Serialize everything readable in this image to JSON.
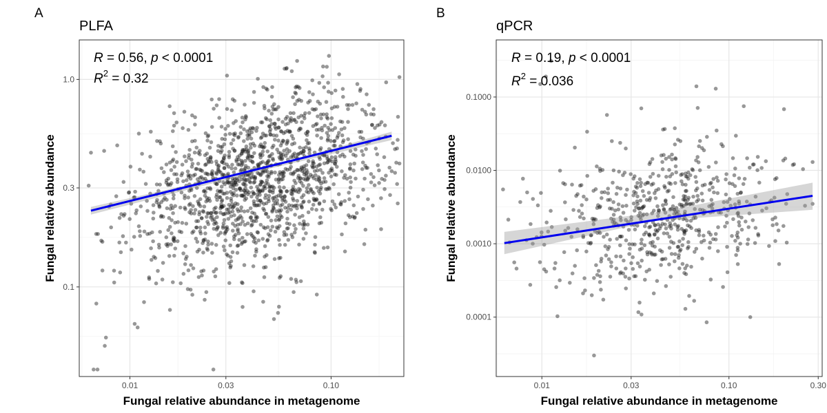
{
  "chart_data": [
    {
      "type": "scatter",
      "panel_letter": "A",
      "title": "PLFA",
      "xlabel": "Fungal relative abundance in metagenome",
      "ylabel": "Fungal relative abundance",
      "x_scale": "log10",
      "y_scale": "log10",
      "xlim": [
        0.0056,
        0.23
      ],
      "ylim": [
        0.037,
        1.55
      ],
      "x_ticks": [
        0.01,
        0.03,
        0.1
      ],
      "x_tick_labels": [
        "0.01",
        "0.03",
        "0.10"
      ],
      "y_ticks": [
        0.1,
        0.3,
        1.0
      ],
      "y_tick_labels": [
        "0.1",
        "0.3",
        "1.0"
      ],
      "grid": true,
      "annotation": {
        "r_label": "R",
        "r_text": " = 0.56, ",
        "p_label": "p",
        "p_text": " < 0.0001",
        "r2_label": "R",
        "r2_sup": "2",
        "r2_text": " = 0.32"
      },
      "regression": {
        "x": [
          0.0064,
          0.2
        ],
        "y": [
          0.233,
          0.535
        ]
      },
      "confidence_band": {
        "x": [
          0.0064,
          0.05,
          0.2
        ],
        "lower": [
          0.223,
          0.372,
          0.51
        ],
        "upper": [
          0.243,
          0.382,
          0.56
        ]
      },
      "points": {
        "n": 1450,
        "x_center": 0.045,
        "x_spread": 0.75,
        "y_center": 0.33,
        "y_spread": 0.52,
        "slope": 0.24,
        "color": "#1a1a1a",
        "opacity": 0.45
      },
      "outliers": [
        {
          "x": 0.0066,
          "y": 0.04
        },
        {
          "x": 0.0069,
          "y": 0.04
        },
        {
          "x": 0.0075,
          "y": 0.052
        },
        {
          "x": 0.0076,
          "y": 0.057
        },
        {
          "x": 0.0073,
          "y": 0.165
        },
        {
          "x": 0.0073,
          "y": 0.12
        },
        {
          "x": 0.0068,
          "y": 0.18
        },
        {
          "x": 0.0135,
          "y": 0.104
        },
        {
          "x": 0.0128,
          "y": 0.135
        },
        {
          "x": 0.0118,
          "y": 0.185
        },
        {
          "x": 0.026,
          "y": 0.04
        },
        {
          "x": 0.027,
          "y": 0.75
        },
        {
          "x": 0.0127,
          "y": 0.56
        },
        {
          "x": 0.0245,
          "y": 0.16
        },
        {
          "x": 0.052,
          "y": 0.07
        },
        {
          "x": 0.158,
          "y": 0.68
        },
        {
          "x": 0.17,
          "y": 0.6
        }
      ],
      "line_color": "#0000ee"
    },
    {
      "type": "scatter",
      "panel_letter": "B",
      "title": "qPCR",
      "xlabel": "Fungal relative abundance in metagenome",
      "ylabel": "Fungal relative abundance",
      "x_scale": "log10",
      "y_scale": "log10",
      "xlim": [
        0.0057,
        0.315
      ],
      "ylim": [
        1.55e-05,
        0.6
      ],
      "x_ticks": [
        0.01,
        0.03,
        0.1,
        0.3
      ],
      "x_tick_labels": [
        "0.01",
        "0.03",
        "0.10",
        "0.30"
      ],
      "y_ticks": [
        0.0001,
        0.001,
        0.01,
        0.1
      ],
      "y_tick_labels": [
        "0.0001",
        "0.0010",
        "0.0100",
        "0.1000"
      ],
      "grid": true,
      "annotation": {
        "r_label": "R",
        "r_text": " = 0.19, ",
        "p_label": "p",
        "p_text": " < 0.0001",
        "r2_label": "R",
        "r2_sup": "2",
        "r2_text": " = 0.036"
      },
      "regression": {
        "x": [
          0.0063,
          0.28
        ],
        "y": [
          0.00102,
          0.0045
        ]
      },
      "confidence_band": {
        "x": [
          0.0063,
          0.04,
          0.28
        ],
        "lower": [
          0.00072,
          0.00205,
          0.0029
        ],
        "upper": [
          0.00145,
          0.00265,
          0.0068
        ]
      },
      "points": {
        "n": 620,
        "x_center": 0.045,
        "x_spread": 0.75,
        "y_center": 0.0025,
        "y_spread": 1.25,
        "slope": 0.38,
        "color": "#1a1a1a",
        "opacity": 0.45
      },
      "outliers": [
        {
          "x": 0.0098,
          "y": 0.15
        },
        {
          "x": 0.0112,
          "y": 0.31
        },
        {
          "x": 0.0105,
          "y": 0.19
        },
        {
          "x": 0.067,
          "y": 0.14
        },
        {
          "x": 0.085,
          "y": 0.13
        },
        {
          "x": 0.12,
          "y": 0.075
        },
        {
          "x": 0.019,
          "y": 3e-05
        },
        {
          "x": 0.0062,
          "y": 0.0055
        },
        {
          "x": 0.28,
          "y": 0.013
        },
        {
          "x": 0.28,
          "y": 0.0035
        },
        {
          "x": 0.13,
          "y": 0.0001
        },
        {
          "x": 0.076,
          "y": 8.5e-05
        },
        {
          "x": 0.034,
          "y": 0.07
        },
        {
          "x": 0.2,
          "y": 0.0145
        }
      ],
      "line_color": "#0000ee"
    }
  ]
}
